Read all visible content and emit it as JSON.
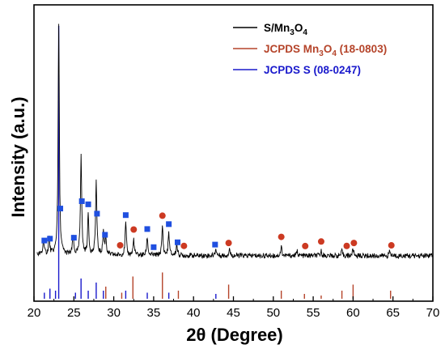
{
  "chart_data": {
    "type": "line",
    "xlabel": "2θ (Degree)",
    "ylabel": "Intensity (a.u.)",
    "xlim": [
      20,
      70
    ],
    "x_ticks": [
      "20",
      "25",
      "30",
      "35",
      "40",
      "45",
      "50",
      "55",
      "60",
      "65",
      "70"
    ],
    "y_ticks_shown": false,
    "colors": {
      "pattern": "#000000",
      "mn3o4_ref": "#b5442a",
      "s_ref": "#1a1acc",
      "s_marker": "#1f4fe0",
      "mn3o4_marker": "#cc3a22"
    },
    "legend": {
      "placement": "top-right",
      "entries": [
        {
          "label": "S/Mn",
          "sub1": "3",
          "mid": "O",
          "sub2": "4",
          "tail": "",
          "color": "#000000"
        },
        {
          "label": "JCPDS Mn",
          "sub1": "3",
          "mid": "O",
          "sub2": "4",
          "tail": " (18-0803)",
          "color": "#b5442a"
        },
        {
          "label": "JCPDS S (08-0247)",
          "sub1": "",
          "mid": "",
          "sub2": "",
          "tail": "",
          "color": "#1a1acc"
        }
      ]
    },
    "pattern_peaks": [
      {
        "x": 21.2,
        "h": 0.06
      },
      {
        "x": 21.9,
        "h": 0.07
      },
      {
        "x": 23.1,
        "h": 1.0
      },
      {
        "x": 24.9,
        "h": 0.08
      },
      {
        "x": 25.9,
        "h": 0.44
      },
      {
        "x": 26.8,
        "h": 0.18
      },
      {
        "x": 27.8,
        "h": 0.32
      },
      {
        "x": 28.7,
        "h": 0.1
      },
      {
        "x": 29.0,
        "h": 0.08
      },
      {
        "x": 31.5,
        "h": 0.14
      },
      {
        "x": 32.5,
        "h": 0.07
      },
      {
        "x": 34.2,
        "h": 0.08
      },
      {
        "x": 36.1,
        "h": 0.13
      },
      {
        "x": 36.9,
        "h": 0.1
      },
      {
        "x": 37.9,
        "h": 0.05
      },
      {
        "x": 42.8,
        "h": 0.03
      },
      {
        "x": 44.5,
        "h": 0.03
      },
      {
        "x": 51.0,
        "h": 0.04
      },
      {
        "x": 53.0,
        "h": 0.02
      },
      {
        "x": 56.0,
        "h": 0.02
      },
      {
        "x": 58.6,
        "h": 0.02
      },
      {
        "x": 60.0,
        "h": 0.03
      },
      {
        "x": 64.6,
        "h": 0.02
      }
    ],
    "jcpds_s_lines": [
      {
        "x": 21.3,
        "h": 0.15
      },
      {
        "x": 22.0,
        "h": 0.25
      },
      {
        "x": 22.7,
        "h": 0.2
      },
      {
        "x": 23.1,
        "h": 1.0
      },
      {
        "x": 25.2,
        "h": 0.15
      },
      {
        "x": 25.9,
        "h": 0.5
      },
      {
        "x": 26.8,
        "h": 0.2
      },
      {
        "x": 27.8,
        "h": 0.4
      },
      {
        "x": 28.7,
        "h": 0.2
      },
      {
        "x": 31.5,
        "h": 0.2
      },
      {
        "x": 34.2,
        "h": 0.15
      },
      {
        "x": 36.9,
        "h": 0.15
      },
      {
        "x": 42.8,
        "h": 0.12
      }
    ],
    "jcpds_mn3o4_lines": [
      {
        "x": 29.0,
        "h": 0.3
      },
      {
        "x": 31.0,
        "h": 0.15
      },
      {
        "x": 32.4,
        "h": 0.55
      },
      {
        "x": 36.1,
        "h": 0.65
      },
      {
        "x": 38.1,
        "h": 0.2
      },
      {
        "x": 44.4,
        "h": 0.35
      },
      {
        "x": 51.0,
        "h": 0.2
      },
      {
        "x": 53.9,
        "h": 0.12
      },
      {
        "x": 56.0,
        "h": 0.08
      },
      {
        "x": 58.6,
        "h": 0.2
      },
      {
        "x": 60.0,
        "h": 0.35
      },
      {
        "x": 64.7,
        "h": 0.2
      }
    ],
    "s_markers": [
      21.3,
      22.0,
      23.3,
      25.0,
      26.0,
      26.8,
      27.9,
      28.9,
      31.5,
      34.2,
      35.0,
      36.9,
      38.0,
      42.7
    ],
    "mn3o4_markers": [
      30.8,
      32.5,
      36.1,
      38.8,
      44.4,
      51.0,
      54.0,
      56.0,
      59.2,
      60.1,
      64.8
    ]
  }
}
